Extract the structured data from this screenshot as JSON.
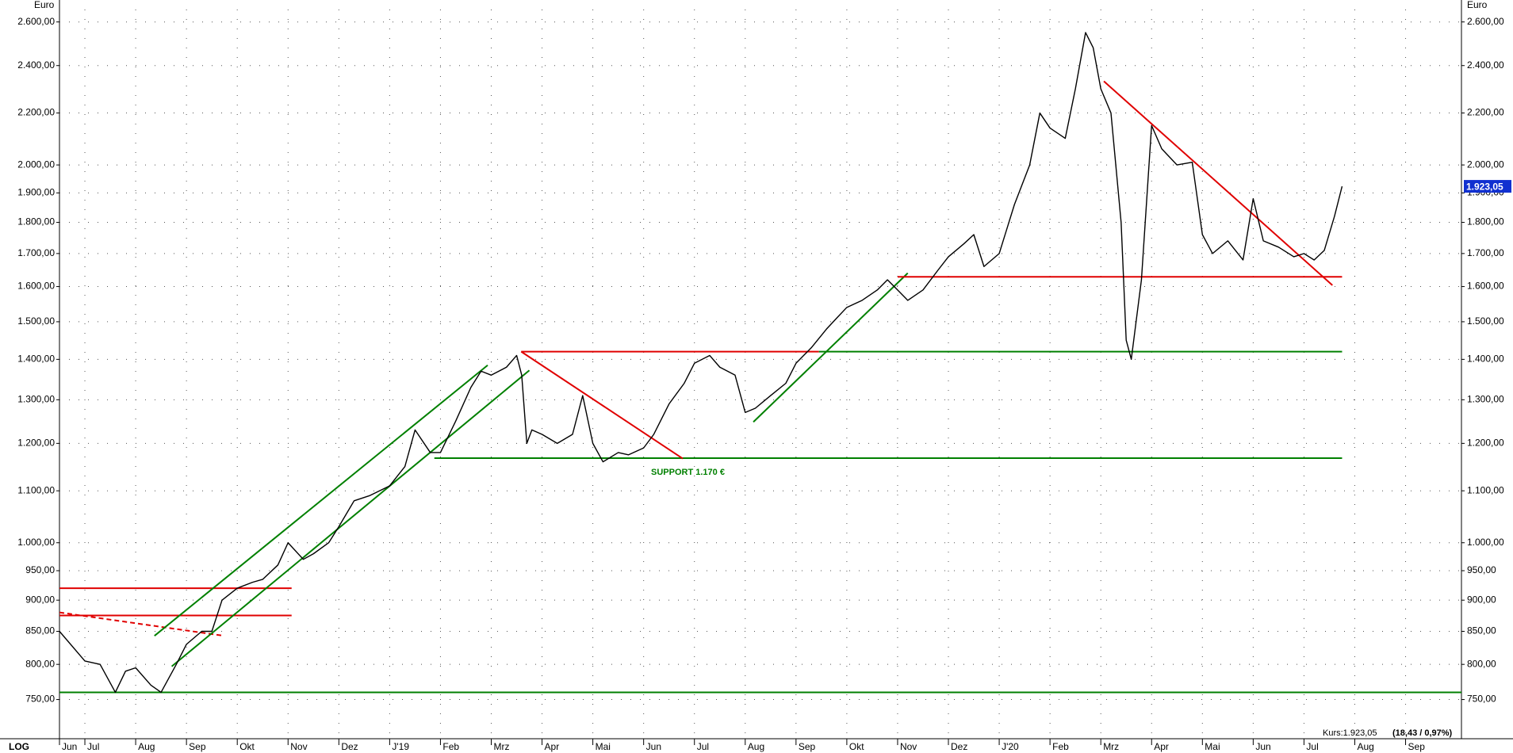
{
  "chart_data": {
    "type": "line",
    "unit_label": "Euro",
    "scale_label": "LOG",
    "log_scale": true,
    "grid": true,
    "annotation": "SUPPORT 1.170 €",
    "price_label": "Kurs:1.923,05",
    "change_label": "(18,43 / 0,97%)",
    "last_value_label": "1.923,05",
    "xlim": [
      0.5,
      28.1
    ],
    "xticks": [
      {
        "value": 0.5,
        "label": "Jun"
      },
      {
        "value": 1,
        "label": "Jul"
      },
      {
        "value": 2,
        "label": "Aug"
      },
      {
        "value": 3,
        "label": "Sep"
      },
      {
        "value": 4,
        "label": "Okt"
      },
      {
        "value": 5,
        "label": "Nov"
      },
      {
        "value": 6,
        "label": "Dez"
      },
      {
        "value": 7,
        "label": "J'19"
      },
      {
        "value": 8,
        "label": "Feb"
      },
      {
        "value": 9,
        "label": "Mrz"
      },
      {
        "value": 10,
        "label": "Apr"
      },
      {
        "value": 11,
        "label": "Mai"
      },
      {
        "value": 12,
        "label": "Jun"
      },
      {
        "value": 13,
        "label": "Jul"
      },
      {
        "value": 14,
        "label": "Aug"
      },
      {
        "value": 15,
        "label": "Sep"
      },
      {
        "value": 16,
        "label": "Okt"
      },
      {
        "value": 17,
        "label": "Nov"
      },
      {
        "value": 18,
        "label": "Dez"
      },
      {
        "value": 19,
        "label": "J'20"
      },
      {
        "value": 20,
        "label": "Feb"
      },
      {
        "value": 21,
        "label": "Mrz"
      },
      {
        "value": 22,
        "label": "Apr"
      },
      {
        "value": 23,
        "label": "Mai"
      },
      {
        "value": 24,
        "label": "Jun"
      },
      {
        "value": 25,
        "label": "Jul"
      },
      {
        "value": 26,
        "label": "Aug"
      },
      {
        "value": 27,
        "label": "Sep"
      }
    ],
    "ylim": [
      700,
      2660
    ],
    "yticks": [
      {
        "value": 750,
        "label": "750,00"
      },
      {
        "value": 800,
        "label": "800,00"
      },
      {
        "value": 850,
        "label": "850,00"
      },
      {
        "value": 900,
        "label": "900,00"
      },
      {
        "value": 950,
        "label": "950,00"
      },
      {
        "value": 1000,
        "label": "1.000,00"
      },
      {
        "value": 1100,
        "label": "1.100,00"
      },
      {
        "value": 1200,
        "label": "1.200,00"
      },
      {
        "value": 1300,
        "label": "1.300,00"
      },
      {
        "value": 1400,
        "label": "1.400,00"
      },
      {
        "value": 1500,
        "label": "1.500,00"
      },
      {
        "value": 1600,
        "label": "1.600,00"
      },
      {
        "value": 1700,
        "label": "1.700,00"
      },
      {
        "value": 1800,
        "label": "1.800,00"
      },
      {
        "value": 1900,
        "label": "1.900,00"
      },
      {
        "value": 2000,
        "label": "2.000,00"
      },
      {
        "value": 2200,
        "label": "2.200,00"
      },
      {
        "value": 2400,
        "label": "2.400,00"
      },
      {
        "value": 2600,
        "label": "2.600,00"
      }
    ],
    "x": [
      0.5,
      1,
      1.3,
      1.6,
      1.8,
      2,
      2.3,
      2.5,
      2.8,
      3,
      3.3,
      3.5,
      3.7,
      4,
      4.3,
      4.5,
      4.8,
      5,
      5.3,
      5.5,
      5.8,
      6,
      6.3,
      6.6,
      6.8,
      7,
      7.3,
      7.5,
      7.8,
      8,
      8.3,
      8.6,
      8.8,
      9,
      9.3,
      9.5,
      9.6,
      9.7,
      9.8,
      10,
      10.3,
      10.6,
      10.8,
      11,
      11.2,
      11.5,
      11.7,
      12,
      12.2,
      12.5,
      12.8,
      13,
      13.3,
      13.5,
      13.8,
      14,
      14.2,
      14.5,
      14.8,
      15,
      15.3,
      15.6,
      15.8,
      16,
      16.3,
      16.6,
      16.8,
      17,
      17.2,
      17.5,
      17.8,
      18,
      18.3,
      18.5,
      18.7,
      19,
      19.3,
      19.6,
      19.8,
      20,
      20.3,
      20.5,
      20.7,
      20.85,
      21,
      21.2,
      21.4,
      21.5,
      21.6,
      21.8,
      22,
      22.2,
      22.5,
      22.8,
      23,
      23.2,
      23.5,
      23.8,
      24,
      24.2,
      24.5,
      24.8,
      25,
      25.2,
      25.4,
      25.6,
      25.75
    ],
    "series": [
      {
        "color": "#000000",
        "values": [
          850,
          805,
          800,
          760,
          790,
          795,
          770,
          760,
          800,
          830,
          850,
          850,
          900,
          920,
          930,
          935,
          960,
          1000,
          970,
          980,
          1000,
          1030,
          1080,
          1090,
          1100,
          1110,
          1150,
          1230,
          1180,
          1180,
          1250,
          1330,
          1370,
          1360,
          1380,
          1410,
          1360,
          1200,
          1230,
          1220,
          1200,
          1220,
          1310,
          1200,
          1160,
          1180,
          1175,
          1190,
          1220,
          1290,
          1340,
          1390,
          1410,
          1380,
          1360,
          1270,
          1280,
          1310,
          1340,
          1390,
          1430,
          1480,
          1510,
          1540,
          1560,
          1590,
          1620,
          1590,
          1560,
          1590,
          1650,
          1690,
          1730,
          1760,
          1660,
          1700,
          1860,
          2000,
          2200,
          2140,
          2100,
          2300,
          2550,
          2480,
          2300,
          2200,
          1800,
          1450,
          1400,
          1620,
          2150,
          2060,
          2000,
          2010,
          1760,
          1700,
          1740,
          1680,
          1880,
          1740,
          1720,
          1690,
          1700,
          1680,
          1710,
          1820,
          1923.05
        ]
      }
    ],
    "overlays": [
      {
        "color": "#008000",
        "x": [
          0.5,
          28.1
        ],
        "values": [
          760,
          760
        ]
      },
      {
        "color": "#e00000",
        "x": [
          0.5,
          5.07
        ],
        "values": [
          920,
          920
        ]
      },
      {
        "color": "#e00000",
        "x": [
          0.5,
          5.07
        ],
        "values": [
          875,
          875
        ]
      },
      {
        "color": "#e00000",
        "dashed": true,
        "x": [
          0.5,
          3.74
        ],
        "values": [
          880,
          843
        ]
      },
      {
        "color": "#008000",
        "x": [
          2.71,
          9.75
        ],
        "values": [
          797,
          1372
        ]
      },
      {
        "color": "#008000",
        "x": [
          2.37,
          8.93
        ],
        "values": [
          843,
          1385
        ]
      },
      {
        "color": "#008000",
        "x": [
          7.88,
          25.75
        ],
        "values": [
          1168,
          1168
        ]
      },
      {
        "color": "#e00000",
        "x": [
          9.59,
          15.45
        ],
        "values": [
          1420,
          1420
        ]
      },
      {
        "color": "#008000",
        "x": [
          15.45,
          25.75
        ],
        "values": [
          1420,
          1420
        ]
      },
      {
        "color": "#e00000",
        "x": [
          9.59,
          12.77
        ],
        "values": [
          1420,
          1167
        ]
      },
      {
        "color": "#008000",
        "x": [
          14.16,
          17.2
        ],
        "values": [
          1248,
          1640
        ]
      },
      {
        "color": "#e00000",
        "x": [
          17.0,
          25.75
        ],
        "values": [
          1629,
          1629
        ]
      },
      {
        "color": "#e00000",
        "x": [
          21.06,
          25.56
        ],
        "values": [
          2332,
          1604
        ]
      }
    ]
  }
}
